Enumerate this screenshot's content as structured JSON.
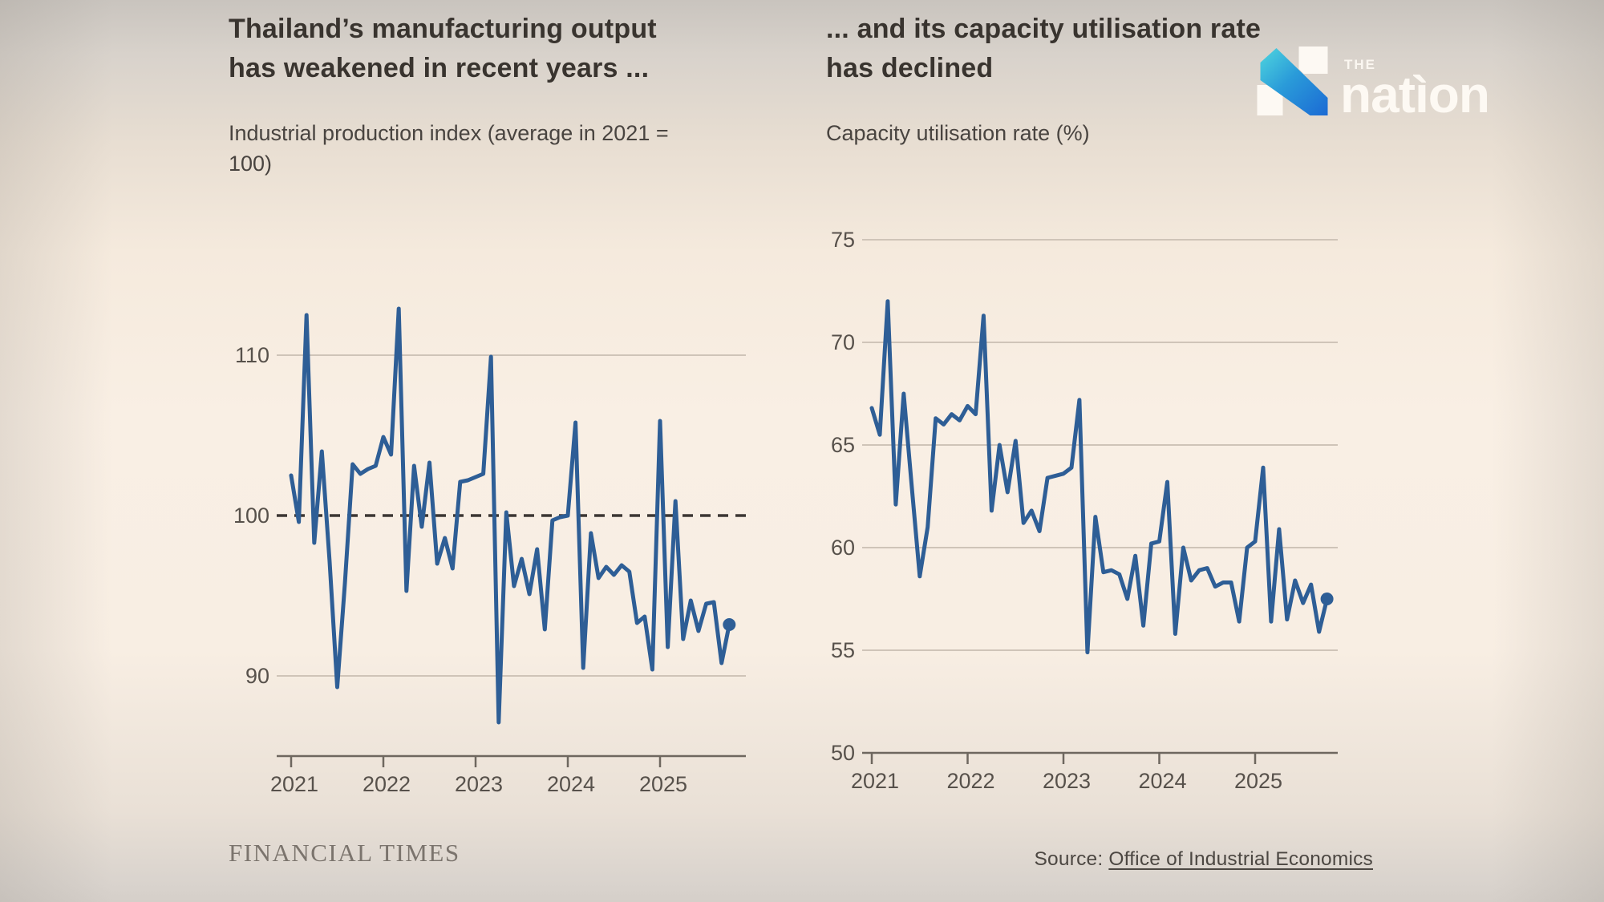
{
  "branding": {
    "ft_masthead": "FINANCIAL TIMES",
    "source_prefix": "Source: ",
    "source_link": "Office of Industrial Economics",
    "nation_the": "THE",
    "nation_word": "natìon"
  },
  "colors": {
    "line": "#2e5e96",
    "grid": "#cfc4b8",
    "dashed_baseline": "#3c3733",
    "axis": "#6e675f",
    "tick_label": "#57514b",
    "title_text": "#39342f",
    "logo_gradient_start": "#4fd6de",
    "logo_gradient_end": "#1b6ad4"
  },
  "chart_data": [
    {
      "id": "industrial-production",
      "type": "line",
      "title": "Thailand’s manufacturing output\nhas weakened in recent years ...",
      "subtitle": "Industrial production index (average in 2021 =\n100)",
      "frequency": "monthly",
      "start": "2021-01",
      "x_tick_labels": [
        "2021",
        "2022",
        "2023",
        "2024",
        "2025"
      ],
      "y_axis": [
        {
          "v": 110,
          "grid": "solid"
        },
        {
          "v": 100,
          "grid": "dashed"
        },
        {
          "v": 90,
          "grid": "solid"
        }
      ],
      "ylim": [
        85,
        118.6
      ],
      "baseline_note": "dashed line at 100 = 2021 average",
      "legend": "none",
      "series": [
        {
          "name": "Industrial production index",
          "values": [
            102.5,
            99.6,
            112.5,
            98.3,
            104.0,
            97.2,
            89.3,
            95.8,
            103.2,
            102.6,
            102.9,
            103.1,
            104.9,
            103.8,
            112.9,
            95.3,
            103.1,
            99.3,
            103.3,
            97.0,
            98.6,
            96.7,
            102.1,
            102.2,
            102.4,
            102.6,
            109.9,
            87.1,
            100.2,
            95.6,
            97.3,
            95.1,
            97.9,
            92.9,
            99.7,
            99.9,
            100.0,
            105.8,
            90.5,
            98.9,
            96.1,
            96.8,
            96.3,
            96.9,
            96.5,
            93.3,
            93.7,
            90.4,
            105.9,
            91.8,
            100.9,
            92.3,
            94.7,
            92.8,
            94.5,
            94.6,
            90.8,
            93.2
          ]
        }
      ],
      "end_marker": true
    },
    {
      "id": "capacity-utilisation",
      "type": "line",
      "title": "... and its capacity utilisation rate\nhas declined",
      "subtitle": "Capacity utilisation rate (%)",
      "frequency": "monthly",
      "start": "2021-01",
      "x_tick_labels": [
        "2021",
        "2022",
        "2023",
        "2024",
        "2025"
      ],
      "y_axis": [
        {
          "v": 75,
          "grid": "solid"
        },
        {
          "v": 70,
          "grid": "solid"
        },
        {
          "v": 65,
          "grid": "solid"
        },
        {
          "v": 60,
          "grid": "solid"
        },
        {
          "v": 55,
          "grid": "solid"
        },
        {
          "v": 50,
          "grid": "axis"
        }
      ],
      "ylim": [
        50,
        76.1
      ],
      "legend": "none",
      "series": [
        {
          "name": "Capacity utilisation rate",
          "values": [
            66.8,
            65.5,
            72.0,
            62.1,
            67.5,
            63.0,
            58.6,
            61.0,
            66.3,
            66.0,
            66.5,
            66.2,
            66.9,
            66.5,
            71.3,
            61.8,
            65.0,
            62.7,
            65.2,
            61.2,
            61.8,
            60.8,
            63.4,
            63.5,
            63.6,
            63.9,
            67.2,
            54.9,
            61.5,
            58.8,
            58.9,
            58.7,
            57.5,
            59.6,
            56.2,
            60.2,
            60.3,
            63.2,
            55.8,
            60.0,
            58.4,
            58.9,
            59.0,
            58.1,
            58.3,
            58.3,
            56.4,
            60.0,
            60.3,
            63.9,
            56.4,
            60.9,
            56.5,
            58.4,
            57.3,
            58.2,
            55.9,
            57.5
          ]
        }
      ],
      "end_marker": true
    }
  ]
}
